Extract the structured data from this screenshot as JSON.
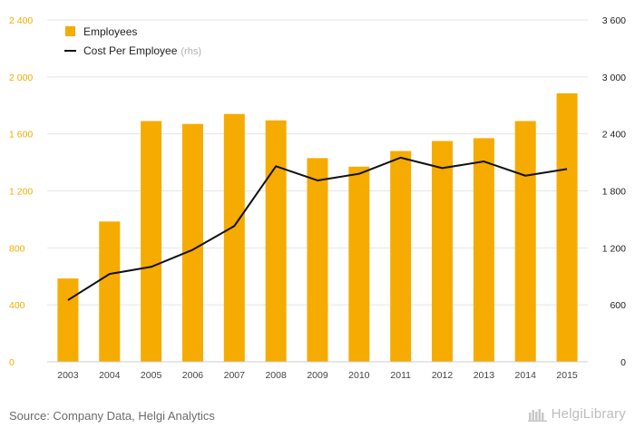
{
  "chart_data": {
    "type": "bar",
    "categories": [
      "2003",
      "2004",
      "2005",
      "2006",
      "2007",
      "2008",
      "2009",
      "2010",
      "2011",
      "2012",
      "2013",
      "2014",
      "2015"
    ],
    "series": [
      {
        "name": "Employees",
        "type": "bar",
        "axis": "left",
        "color": "#f5ab00",
        "values": [
          585,
          985,
          1690,
          1670,
          1740,
          1695,
          1430,
          1370,
          1480,
          1550,
          1570,
          1690,
          1885
        ]
      },
      {
        "name": "Cost Per Employee",
        "name_note": "(rhs)",
        "type": "line",
        "axis": "right",
        "color": "#111111",
        "values": [
          650,
          925,
          1000,
          1180,
          1430,
          2060,
          1910,
          1980,
          2150,
          2040,
          2110,
          1960,
          2030
        ]
      }
    ],
    "y_left": {
      "min": 0,
      "max": 2400,
      "ticks": [
        "0",
        "400",
        "800",
        "1 200",
        "1 600",
        "2 000",
        "2 400"
      ],
      "tick_color": "#f5ab00"
    },
    "y_right": {
      "min": 0,
      "max": 3600,
      "ticks": [
        "0",
        "600",
        "1 200",
        "1 800",
        "2 400",
        "3 000",
        "3 600"
      ],
      "tick_color": "#222222"
    },
    "grid": true,
    "legend": "top-left"
  },
  "footer": {
    "source": "Source: Company Data, Helgi Analytics",
    "brand": "HelgiLibrary"
  }
}
